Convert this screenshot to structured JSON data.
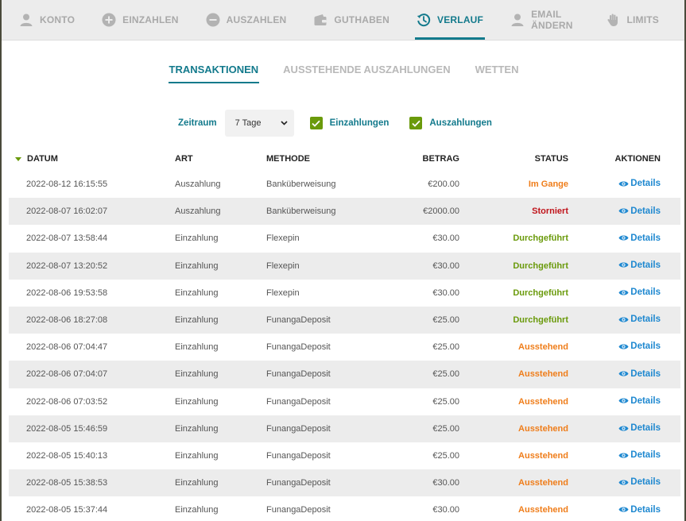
{
  "nav": {
    "items": [
      {
        "label": "KONTO",
        "icon": "user-icon"
      },
      {
        "label": "EINZAHLEN",
        "icon": "plus-circle-icon"
      },
      {
        "label": "AUSZAHLEN",
        "icon": "minus-circle-icon"
      },
      {
        "label": "GUTHABEN",
        "icon": "wallet-icon"
      },
      {
        "label": "VERLAUF",
        "icon": "history-icon",
        "active": true
      },
      {
        "label": "EMAIL ÄNDERN",
        "icon": "user-icon"
      },
      {
        "label": "LIMITS",
        "icon": "hand-icon"
      }
    ]
  },
  "subtabs": [
    {
      "label": "TRANSAKTIONEN",
      "active": true
    },
    {
      "label": "AUSSTEHENDE AUSZAHLUNGEN"
    },
    {
      "label": "WETTEN"
    }
  ],
  "filters": {
    "period_label": "Zeitraum",
    "period_value": "7 Tage",
    "deposits_label": "Einzahlungen",
    "deposits_checked": true,
    "withdrawals_label": "Auszahlungen",
    "withdrawals_checked": true
  },
  "table": {
    "headers": {
      "date": "DATUM",
      "type": "ART",
      "method": "METHODE",
      "amount": "BETRAG",
      "status": "STATUS",
      "actions": "AKTIONEN"
    },
    "details_label": "Details",
    "rows": [
      {
        "date": "2022-08-12 16:15:55",
        "type": "Auszahlung",
        "method": "Banküberweisung",
        "amount": "€200.00",
        "status": "Im Gange",
        "status_kind": "progress"
      },
      {
        "date": "2022-08-07 16:02:07",
        "type": "Auszahlung",
        "method": "Banküberweisung",
        "amount": "€2000.00",
        "status": "Storniert",
        "status_kind": "cancel"
      },
      {
        "date": "2022-08-07 13:58:44",
        "type": "Einzahlung",
        "method": "Flexepin",
        "amount": "€30.00",
        "status": "Durchgeführt",
        "status_kind": "done"
      },
      {
        "date": "2022-08-07 13:20:52",
        "type": "Einzahlung",
        "method": "Flexepin",
        "amount": "€30.00",
        "status": "Durchgeführt",
        "status_kind": "done"
      },
      {
        "date": "2022-08-06 19:53:58",
        "type": "Einzahlung",
        "method": "Flexepin",
        "amount": "€30.00",
        "status": "Durchgeführt",
        "status_kind": "done"
      },
      {
        "date": "2022-08-06 18:27:08",
        "type": "Einzahlung",
        "method": "FunangaDeposit",
        "amount": "€25.00",
        "status": "Durchgeführt",
        "status_kind": "done"
      },
      {
        "date": "2022-08-06 07:04:47",
        "type": "Einzahlung",
        "method": "FunangaDeposit",
        "amount": "€25.00",
        "status": "Ausstehend",
        "status_kind": "pending"
      },
      {
        "date": "2022-08-06 07:04:07",
        "type": "Einzahlung",
        "method": "FunangaDeposit",
        "amount": "€25.00",
        "status": "Ausstehend",
        "status_kind": "pending"
      },
      {
        "date": "2022-08-06 07:03:52",
        "type": "Einzahlung",
        "method": "FunangaDeposit",
        "amount": "€25.00",
        "status": "Ausstehend",
        "status_kind": "pending"
      },
      {
        "date": "2022-08-05 15:46:59",
        "type": "Einzahlung",
        "method": "FunangaDeposit",
        "amount": "€25.00",
        "status": "Ausstehend",
        "status_kind": "pending"
      },
      {
        "date": "2022-08-05 15:40:13",
        "type": "Einzahlung",
        "method": "FunangaDeposit",
        "amount": "€25.00",
        "status": "Ausstehend",
        "status_kind": "pending"
      },
      {
        "date": "2022-08-05 15:38:53",
        "type": "Einzahlung",
        "method": "FunangaDeposit",
        "amount": "€30.00",
        "status": "Ausstehend",
        "status_kind": "pending"
      },
      {
        "date": "2022-08-05 15:37:44",
        "type": "Einzahlung",
        "method": "FunangaDeposit",
        "amount": "€30.00",
        "status": "Ausstehend",
        "status_kind": "pending"
      }
    ]
  },
  "colors": {
    "accent": "#137a8c",
    "green": "#6a9a0b",
    "orange": "#ef7d1a",
    "red": "#c0141b",
    "link": "#1e88d0"
  }
}
